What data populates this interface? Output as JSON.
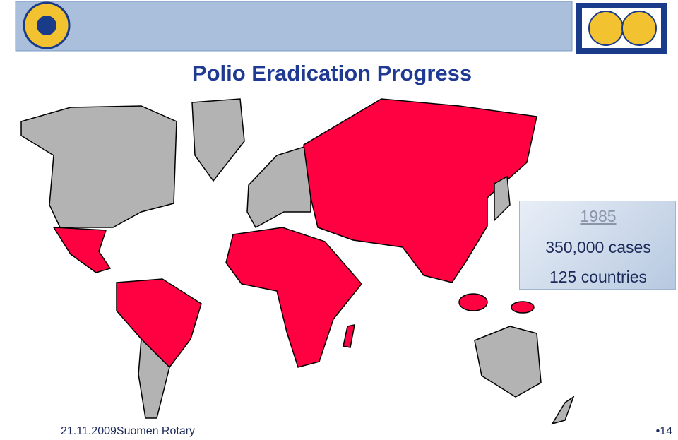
{
  "header": {
    "title": "Polio Eradication Progress"
  },
  "infobox": {
    "year": "1985",
    "cases": "350,000 cases",
    "countries": "125 countries"
  },
  "footer": {
    "date": "21.11.2009",
    "org": "Suomen Rotary",
    "page": "•14"
  }
}
